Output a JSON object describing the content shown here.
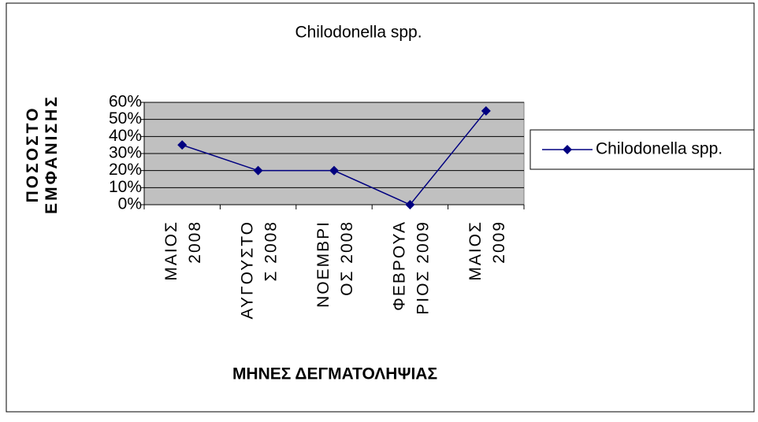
{
  "chart_data": {
    "type": "line",
    "title": "Chilodonella spp.",
    "x_label": "ΜΗΝΕΣ ΔΕΓΜΑΤΟΛΗΨΙΑΣ",
    "y_label": "ΠΟΣΟΣΤΟ\nΕΜΦΑΝΙΣΗΣ",
    "categories": [
      "ΜΑΙΟΣ\n2008",
      "ΑΥΓΟΥΣΤΟ\nΣ 2008",
      "ΝΟΕΜΒΡΙ\nΟΣ 2008",
      "ΦΕΒΡΟΥΑ\nΡΙΟΣ 2009",
      "ΜΑΙΟΣ\n2009"
    ],
    "series": [
      {
        "name": "Chilodonella spp.",
        "color": "#000080",
        "values": [
          35,
          20,
          20,
          0,
          55
        ]
      }
    ],
    "ylim": [
      0,
      60
    ],
    "yticks": [
      {
        "value": 0,
        "label": "0%"
      },
      {
        "value": 10,
        "label": "10%"
      },
      {
        "value": 20,
        "label": "20%"
      },
      {
        "value": 30,
        "label": "30%"
      },
      {
        "value": 40,
        "label": "40%"
      },
      {
        "value": 50,
        "label": "50%"
      },
      {
        "value": 60,
        "label": "60%"
      }
    ],
    "grid": true,
    "legend": "right"
  }
}
